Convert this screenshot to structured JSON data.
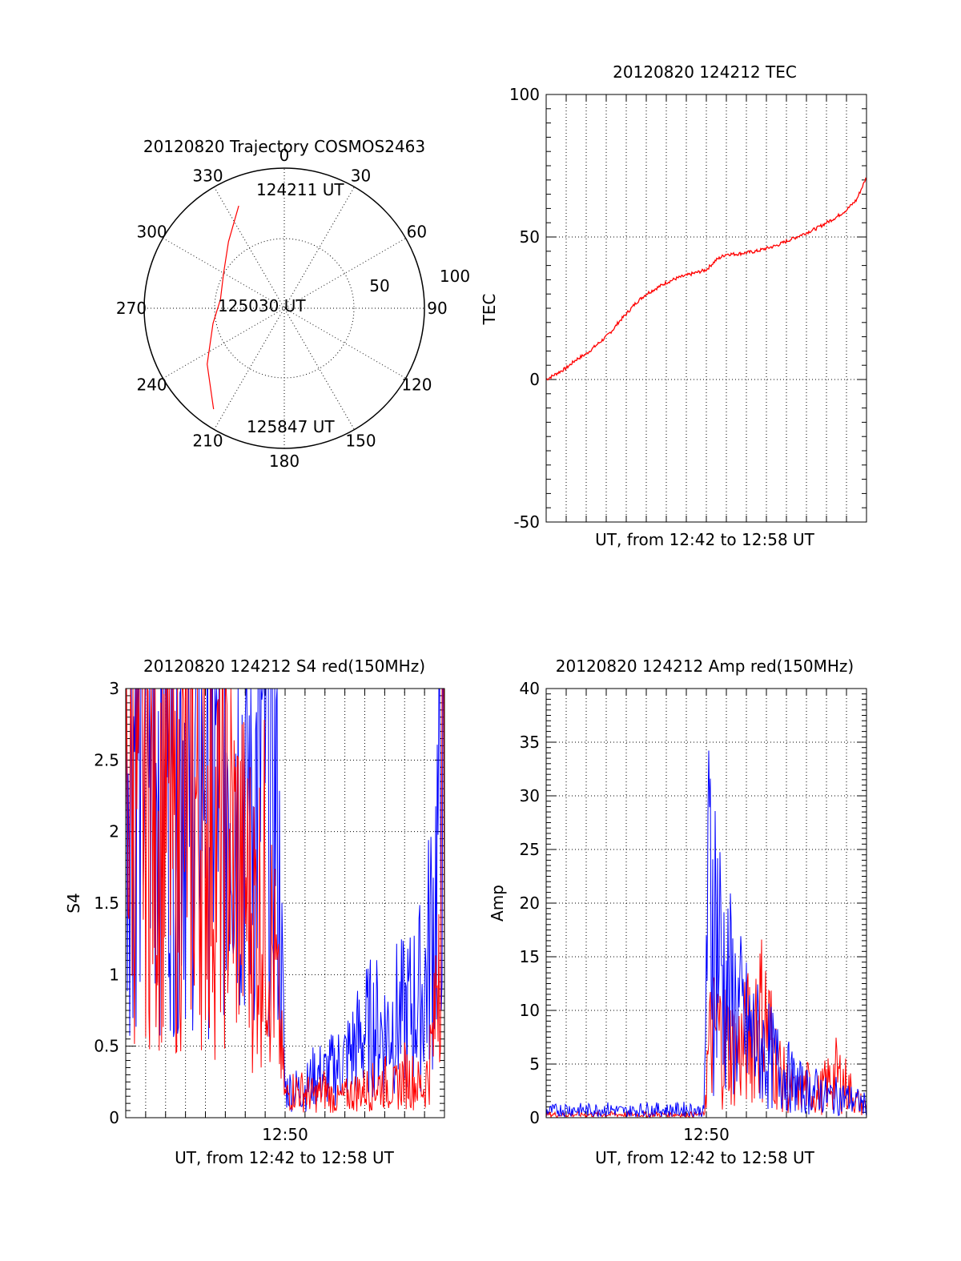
{
  "chart_data": [
    {
      "type": "polar",
      "title": "20120820 Trajectory COSMOS2463",
      "azimuth_labels": [
        "0",
        "30",
        "60",
        "90",
        "120",
        "150",
        "180",
        "210",
        "240",
        "270",
        "300",
        "330"
      ],
      "radial_labels": [
        "50",
        "100"
      ],
      "rlim": [
        0,
        100
      ],
      "grid": true,
      "series": [
        {
          "color": "#ff0000",
          "points": [
            {
              "az": 336,
              "r": 80
            },
            {
              "az": 320,
              "r": 62
            },
            {
              "az": 300,
              "r": 50
            },
            {
              "az": 278,
              "r": 46
            },
            {
              "az": 258,
              "r": 52
            },
            {
              "az": 234,
              "r": 68
            },
            {
              "az": 215,
              "r": 88
            }
          ]
        }
      ],
      "annotations": [
        {
          "text": "124211 UT",
          "az": 336,
          "r": 80
        },
        {
          "text": "125030 UT",
          "az": 0,
          "r": 0
        },
        {
          "text": "125847 UT",
          "az": 215,
          "r": 88
        }
      ]
    },
    {
      "type": "line",
      "title": "20120820 124212 TEC",
      "xlabel": "UT, from 12:42 to 12:58 UT",
      "ylabel": "TEC",
      "xlim": [
        0,
        16
      ],
      "ylim": [
        -50,
        100
      ],
      "yticks": [
        "-50",
        "0",
        "50",
        "100"
      ],
      "grid": true,
      "series": [
        {
          "color": "#ff0000",
          "x": [
            0,
            0.5,
            1.0,
            1.5,
            2.0,
            2.5,
            3.0,
            3.4,
            3.6,
            4.0,
            4.5,
            5.0,
            5.5,
            6.0,
            6.5,
            7.0,
            7.5,
            8.0,
            8.5,
            9.0,
            9.5,
            10.0,
            10.5,
            11.0,
            11.5,
            12.0,
            12.5,
            13.0,
            13.5,
            14.0,
            14.5,
            15.0,
            15.5,
            16.0
          ],
          "y": [
            0,
            2,
            4,
            7,
            9,
            12,
            15,
            18,
            20,
            23,
            27,
            30,
            32,
            34,
            35.5,
            36.5,
            37.5,
            38.5,
            42,
            44,
            44,
            44.5,
            45,
            46,
            47,
            48.5,
            50,
            51.5,
            53,
            55,
            57,
            59.5,
            63,
            71
          ]
        }
      ]
    },
    {
      "type": "line",
      "title": "20120820 124212 S4 red(150MHz)",
      "xlabel": "UT, from 12:42 to 12:58 UT",
      "ylabel": "S4",
      "xlim": [
        0,
        16
      ],
      "ylim": [
        0,
        3
      ],
      "xticks": [
        "12:50"
      ],
      "yticks": [
        "0",
        "0.5",
        "1",
        "1.5",
        "2",
        "2.5",
        "3"
      ],
      "grid": true,
      "series": [
        {
          "color": "#0000ff",
          "x": [
            0,
            0.5,
            1.0,
            1.5,
            2.0,
            2.5,
            3.0,
            3.5,
            4.0,
            4.5,
            5.0,
            5.5,
            6.0,
            6.5,
            7.0,
            7.5,
            8.0,
            8.5,
            9.0,
            9.5,
            10.0,
            10.5,
            11.0,
            11.5,
            12.0,
            12.5,
            13.0,
            13.5,
            14.0,
            14.5,
            15.0,
            15.5,
            16.0
          ],
          "y": [
            2.9,
            2.8,
            2.9,
            2.7,
            2.9,
            2.6,
            2.8,
            2.7,
            2.8,
            2.5,
            2.7,
            2.6,
            2.4,
            2.2,
            2.8,
            2.6,
            0.2,
            0.2,
            0.2,
            0.3,
            0.3,
            0.35,
            0.4,
            0.5,
            0.6,
            0.65,
            0.6,
            0.7,
            0.7,
            0.8,
            0.9,
            1.5,
            2.9
          ]
        },
        {
          "color": "#ff0000",
          "x": [
            0,
            0.5,
            1.0,
            1.5,
            2.0,
            2.5,
            3.0,
            3.5,
            4.0,
            4.5,
            5.0,
            5.5,
            6.0,
            6.5,
            7.0,
            7.5,
            8.0,
            8.5,
            9.0,
            9.5,
            10.0,
            10.5,
            11.0,
            11.5,
            12.0,
            12.5,
            13.0,
            13.5,
            14.0,
            14.5,
            15.0,
            15.5,
            16.0
          ],
          "y": [
            2.6,
            2.2,
            2.5,
            2.0,
            2.4,
            1.8,
            2.3,
            2.1,
            2.2,
            1.9,
            2.1,
            1.8,
            1.6,
            1.4,
            1.6,
            1.0,
            0.15,
            0.2,
            0.18,
            0.15,
            0.2,
            0.12,
            0.15,
            0.18,
            0.2,
            0.22,
            0.25,
            0.2,
            0.3,
            0.25,
            0.2,
            0.6,
            2.8
          ]
        }
      ]
    },
    {
      "type": "line",
      "title": "20120820 124212 Amp red(150MHz)",
      "xlabel": "UT, from 12:42 to 12:58 UT",
      "ylabel": "Amp",
      "xlim": [
        0,
        16
      ],
      "ylim": [
        0,
        40
      ],
      "xticks": [
        "12:50"
      ],
      "yticks": [
        "0",
        "5",
        "10",
        "15",
        "20",
        "25",
        "30",
        "35",
        "40"
      ],
      "grid": true,
      "series": [
        {
          "color": "#ff0000",
          "x": [
            0,
            7.9,
            8.0,
            8.2,
            8.5,
            9.0,
            9.5,
            10.0,
            10.5,
            11.0,
            11.5,
            12.0,
            12.5,
            13.0,
            13.5,
            14.0,
            14.5,
            15.0,
            15.5,
            16.0
          ],
          "y": [
            0.3,
            0.3,
            4,
            7,
            8,
            7,
            6,
            7,
            10,
            9,
            5,
            3,
            2,
            3,
            2,
            3,
            4,
            3,
            1.5,
            1
          ]
        },
        {
          "color": "#0000ff",
          "x": [
            0,
            1,
            2,
            3,
            4,
            5,
            6,
            7,
            7.9,
            8.0,
            8.2,
            8.5,
            8.8,
            9.0,
            9.5,
            10.0,
            10.5,
            11.0,
            11.5,
            12.0,
            12.5,
            13.0,
            13.5,
            14.0,
            14.5,
            15.0,
            15.5,
            16.0
          ],
          "y": [
            0.6,
            0.8,
            0.7,
            0.8,
            0.6,
            0.8,
            0.7,
            0.8,
            0.6,
            16,
            22,
            18,
            14,
            12,
            10,
            8,
            7,
            6,
            5,
            4,
            3,
            2.5,
            2.5,
            2,
            2,
            1.8,
            1.5,
            1.2
          ]
        }
      ]
    }
  ]
}
